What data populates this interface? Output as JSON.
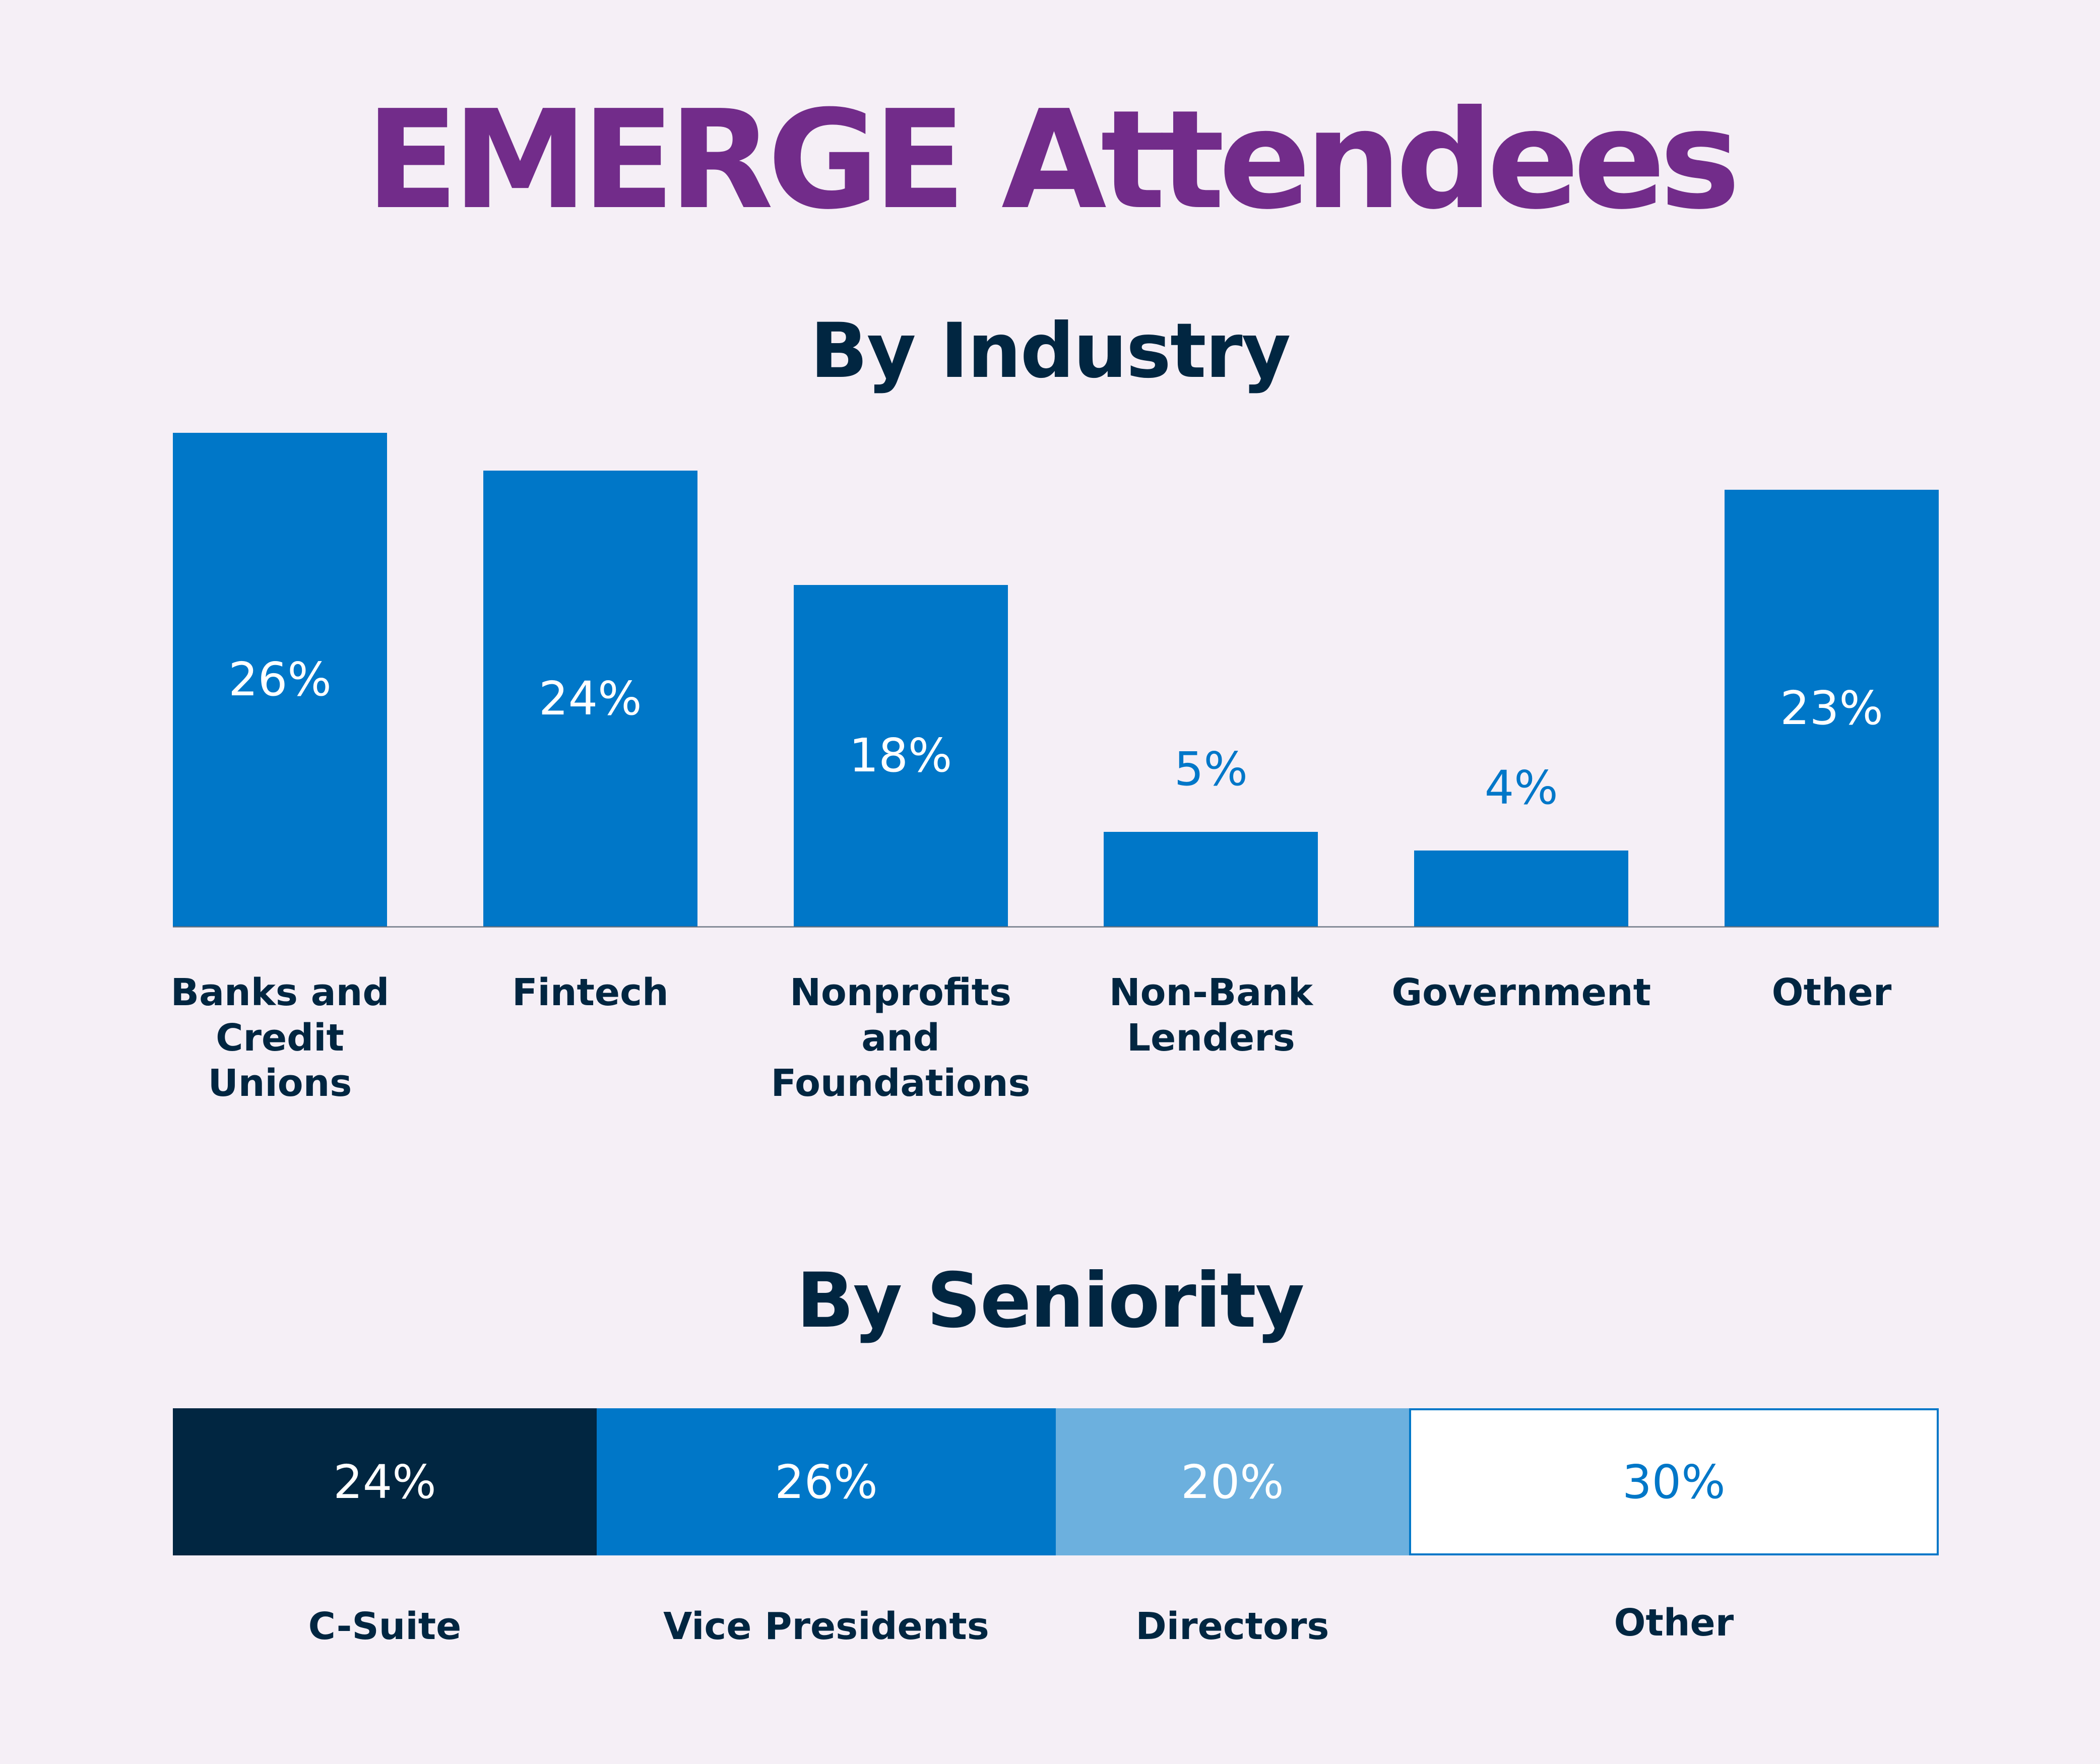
{
  "title": "EMERGE Attendees",
  "chart_data": [
    {
      "type": "bar",
      "title": "By Industry",
      "categories": [
        "Banks and Credit Unions",
        "Fintech",
        "Nonprofits and Foundations",
        "Non-Bank Lenders",
        "Government",
        "Other"
      ],
      "values": [
        26,
        24,
        18,
        5,
        4,
        23
      ],
      "data_labels": [
        "26%",
        "24%",
        "18%",
        "5%",
        "4%",
        "23%"
      ],
      "ylim": [
        0,
        26
      ],
      "grid": false,
      "colors": {
        "bar": "#0077c8",
        "label_inside": "#ffffff",
        "label_outside": "#0077c8"
      }
    },
    {
      "type": "bar",
      "stacked": true,
      "orientation": "horizontal",
      "title": "By Seniority",
      "categories": [
        "C-Suite",
        "Vice Presidents",
        "Directors",
        "Other"
      ],
      "values": [
        24,
        26,
        20,
        30
      ],
      "data_labels": [
        "24%",
        "26%",
        "20%",
        "30%"
      ],
      "colors": [
        "#012641",
        "#0077c8",
        "#6cb0de",
        "#ffffff"
      ],
      "label_colors": [
        "#ffffff",
        "#ffffff",
        "#ffffff",
        "#0077c8"
      ],
      "grid": false
    }
  ]
}
